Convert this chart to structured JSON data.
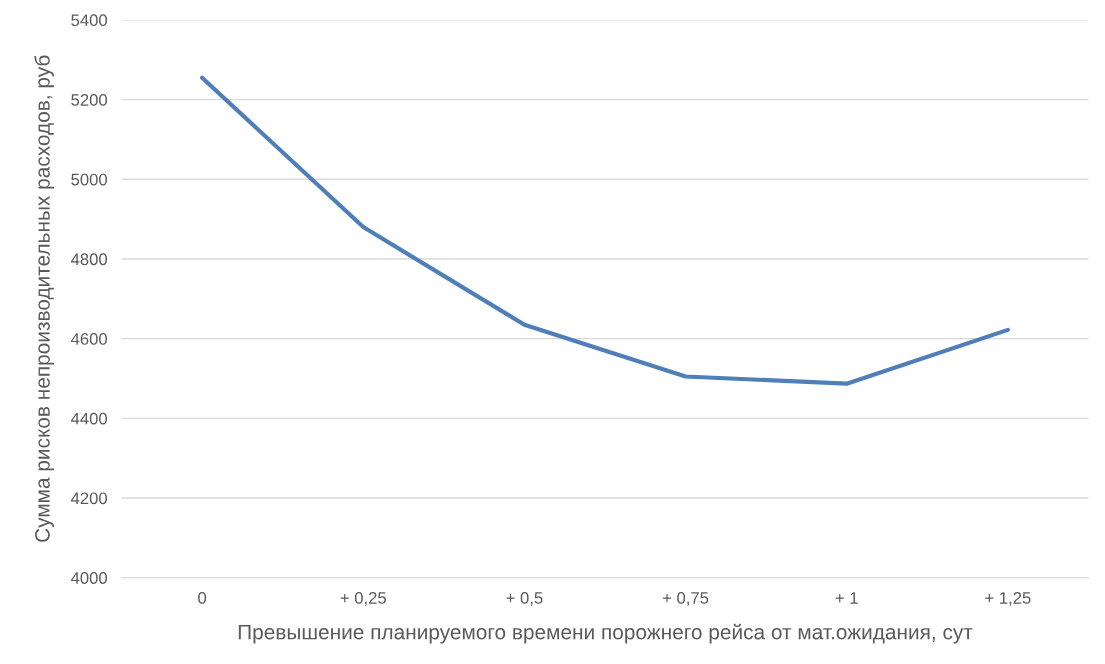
{
  "chart_data": {
    "type": "line",
    "xlabel": "Превышение планируемого времени порожнего рейса от мат.ожидания, сут",
    "ylabel": "Сумма рисков непроизводительных расходов, руб",
    "categories": [
      "0",
      "+ 0,25",
      "+ 0,5",
      "+ 0,75",
      "+ 1",
      "+ 1,25"
    ],
    "series": [
      {
        "color": "#4f7fb8",
        "values": [
          5255,
          4880,
          4635,
          4505,
          4487,
          4622
        ]
      }
    ],
    "ylim": [
      4000,
      5400
    ],
    "yticks": [
      4000,
      4200,
      4400,
      4600,
      4800,
      5000,
      5200,
      5400
    ],
    "grid": "y",
    "legend": false,
    "marker": "none",
    "line_style": "solid"
  }
}
